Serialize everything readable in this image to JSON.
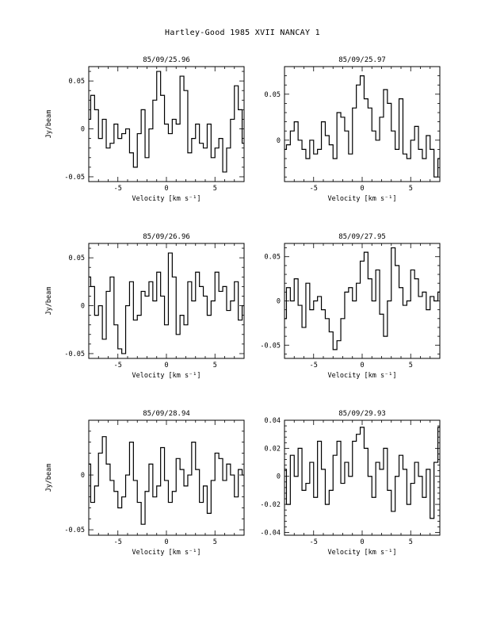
{
  "page": {
    "title": "Hartley-Good 1985 XVII    NANCAY      1"
  },
  "chart_data": [
    {
      "type": "line",
      "title": "85/09/25.96",
      "xlabel": "Velocity [km s⁻¹]",
      "ylabel": "Jy/beam",
      "xlim": [
        -8,
        8
      ],
      "ylim": [
        -0.055,
        0.065
      ],
      "xticks": [
        -5,
        0,
        5
      ],
      "yticks": [
        -0.05,
        0,
        0.05
      ],
      "ytick_labels": [
        "-0.05",
        "0",
        "0.05"
      ],
      "x": [
        -8.0,
        -7.6,
        -7.2,
        -6.8,
        -6.4,
        -6.0,
        -5.6,
        -5.2,
        -4.8,
        -4.4,
        -4.0,
        -3.6,
        -3.2,
        -2.8,
        -2.4,
        -2.0,
        -1.6,
        -1.2,
        -0.8,
        -0.4,
        0.0,
        0.4,
        0.8,
        1.2,
        1.6,
        2.0,
        2.4,
        2.8,
        3.2,
        3.6,
        4.0,
        4.4,
        4.8,
        5.2,
        5.6,
        6.0,
        6.4,
        6.8,
        7.2,
        7.6,
        8.0
      ],
      "values": [
        0.01,
        0.035,
        0.02,
        -0.01,
        0.01,
        -0.02,
        -0.015,
        0.005,
        -0.01,
        -0.005,
        0.0,
        -0.025,
        -0.04,
        -0.005,
        0.02,
        -0.03,
        0.0,
        0.03,
        0.06,
        0.035,
        0.005,
        -0.005,
        0.01,
        0.005,
        0.055,
        0.04,
        -0.025,
        -0.01,
        0.005,
        -0.015,
        -0.02,
        0.005,
        -0.03,
        -0.02,
        -0.01,
        -0.045,
        -0.02,
        0.01,
        0.045,
        0.02,
        -0.015
      ]
    },
    {
      "type": "line",
      "title": "85/09/25.97",
      "xlabel": "Velocity [km s⁻¹]",
      "ylabel": "",
      "xlim": [
        -8,
        8
      ],
      "ylim": [
        -0.045,
        0.08
      ],
      "xticks": [
        -5,
        0,
        5
      ],
      "yticks": [
        0,
        0.05
      ],
      "ytick_labels": [
        "0",
        "0.05"
      ],
      "x": [
        -8.0,
        -7.6,
        -7.2,
        -6.8,
        -6.4,
        -6.0,
        -5.6,
        -5.2,
        -4.8,
        -4.4,
        -4.0,
        -3.6,
        -3.2,
        -2.8,
        -2.4,
        -2.0,
        -1.6,
        -1.2,
        -0.8,
        -0.4,
        0.0,
        0.4,
        0.8,
        1.2,
        1.6,
        2.0,
        2.4,
        2.8,
        3.2,
        3.6,
        4.0,
        4.4,
        4.8,
        5.2,
        5.6,
        6.0,
        6.4,
        6.8,
        7.2,
        7.6,
        8.0
      ],
      "values": [
        -0.01,
        -0.005,
        0.01,
        0.02,
        0.0,
        -0.01,
        -0.02,
        0.0,
        -0.015,
        -0.01,
        0.02,
        0.005,
        -0.005,
        -0.02,
        0.03,
        0.025,
        0.01,
        -0.015,
        0.035,
        0.06,
        0.07,
        0.045,
        0.035,
        0.01,
        0.0,
        0.025,
        0.055,
        0.04,
        0.01,
        -0.01,
        0.045,
        -0.015,
        -0.02,
        0.0,
        0.015,
        -0.01,
        -0.02,
        0.005,
        -0.01,
        -0.04,
        -0.02
      ]
    },
    {
      "type": "line",
      "title": "85/09/26.96",
      "xlabel": "Velocity [km s⁻¹]",
      "ylabel": "Jy/beam",
      "xlim": [
        -8,
        8
      ],
      "ylim": [
        -0.055,
        0.065
      ],
      "xticks": [
        -5,
        0,
        5
      ],
      "yticks": [
        -0.05,
        0,
        0.05
      ],
      "ytick_labels": [
        "-0.05",
        "0",
        "0.05"
      ],
      "x": [
        -8.0,
        -7.6,
        -7.2,
        -6.8,
        -6.4,
        -6.0,
        -5.6,
        -5.2,
        -4.8,
        -4.4,
        -4.0,
        -3.6,
        -3.2,
        -2.8,
        -2.4,
        -2.0,
        -1.6,
        -1.2,
        -0.8,
        -0.4,
        0.0,
        0.4,
        0.8,
        1.2,
        1.6,
        2.0,
        2.4,
        2.8,
        3.2,
        3.6,
        4.0,
        4.4,
        4.8,
        5.2,
        5.6,
        6.0,
        6.4,
        6.8,
        7.2,
        7.6,
        8.0
      ],
      "values": [
        0.03,
        0.02,
        -0.01,
        0.0,
        -0.035,
        0.015,
        0.03,
        -0.02,
        -0.045,
        -0.05,
        0.0,
        0.025,
        -0.015,
        -0.01,
        0.015,
        0.01,
        0.025,
        0.005,
        0.035,
        0.01,
        -0.02,
        0.055,
        0.03,
        -0.03,
        -0.01,
        -0.02,
        0.025,
        0.005,
        0.035,
        0.02,
        0.01,
        -0.01,
        0.005,
        0.035,
        0.015,
        0.02,
        -0.005,
        0.005,
        0.025,
        -0.015,
        0.0
      ]
    },
    {
      "type": "line",
      "title": "85/09/27.95",
      "xlabel": "Velocity [km s⁻¹]",
      "ylabel": "",
      "xlim": [
        -8,
        8
      ],
      "ylim": [
        -0.065,
        0.065
      ],
      "xticks": [
        -5,
        0,
        5
      ],
      "yticks": [
        -0.05,
        0,
        0.05
      ],
      "ytick_labels": [
        "-0.05",
        "0",
        "0.05"
      ],
      "x": [
        -8.0,
        -7.6,
        -7.2,
        -6.8,
        -6.4,
        -6.0,
        -5.6,
        -5.2,
        -4.8,
        -4.4,
        -4.0,
        -3.6,
        -3.2,
        -2.8,
        -2.4,
        -2.0,
        -1.6,
        -1.2,
        -0.8,
        -0.4,
        0.0,
        0.4,
        0.8,
        1.2,
        1.6,
        2.0,
        2.4,
        2.8,
        3.2,
        3.6,
        4.0,
        4.4,
        4.8,
        5.2,
        5.6,
        6.0,
        6.4,
        6.8,
        7.2,
        7.6,
        8.0
      ],
      "values": [
        -0.02,
        0.015,
        0.0,
        0.025,
        -0.005,
        -0.03,
        0.02,
        -0.01,
        0.0,
        0.005,
        -0.01,
        -0.02,
        -0.035,
        -0.055,
        -0.045,
        -0.02,
        0.01,
        0.015,
        0.0,
        0.02,
        0.045,
        0.055,
        0.025,
        0.0,
        0.035,
        -0.015,
        -0.04,
        0.0,
        0.06,
        0.04,
        0.015,
        -0.005,
        0.0,
        0.035,
        0.025,
        0.005,
        0.01,
        -0.01,
        0.005,
        0.0,
        0.01
      ]
    },
    {
      "type": "line",
      "title": "85/09/28.94",
      "xlabel": "Velocity [km s⁻¹]",
      "ylabel": "Jy/beam",
      "xlim": [
        -8,
        8
      ],
      "ylim": [
        -0.055,
        0.05
      ],
      "xticks": [
        -5,
        0,
        5
      ],
      "yticks": [
        -0.05,
        0
      ],
      "ytick_labels": [
        "-0.05",
        "0"
      ],
      "x": [
        -8.0,
        -7.6,
        -7.2,
        -6.8,
        -6.4,
        -6.0,
        -5.6,
        -5.2,
        -4.8,
        -4.4,
        -4.0,
        -3.6,
        -3.2,
        -2.8,
        -2.4,
        -2.0,
        -1.6,
        -1.2,
        -0.8,
        -0.4,
        0.0,
        0.4,
        0.8,
        1.2,
        1.6,
        2.0,
        2.4,
        2.8,
        3.2,
        3.6,
        4.0,
        4.4,
        4.8,
        5.2,
        5.6,
        6.0,
        6.4,
        6.8,
        7.2,
        7.6,
        8.0
      ],
      "values": [
        0.01,
        -0.025,
        -0.01,
        0.02,
        0.035,
        0.01,
        -0.005,
        -0.015,
        -0.03,
        -0.02,
        0.0,
        0.03,
        -0.005,
        -0.025,
        -0.045,
        -0.015,
        0.01,
        -0.02,
        -0.01,
        0.025,
        -0.005,
        -0.025,
        -0.015,
        0.015,
        0.005,
        -0.01,
        0.0,
        0.03,
        0.005,
        -0.025,
        -0.01,
        -0.035,
        -0.005,
        0.02,
        0.015,
        -0.005,
        0.01,
        0.0,
        -0.02,
        0.005,
        0.0
      ]
    },
    {
      "type": "line",
      "title": "85/09/29.93",
      "xlabel": "Velocity [km s⁻¹]",
      "ylabel": "",
      "xlim": [
        -8,
        8
      ],
      "ylim": [
        -0.042,
        0.04
      ],
      "xticks": [
        -5,
        0,
        5
      ],
      "yticks": [
        -0.04,
        -0.02,
        0,
        0.02,
        0.04
      ],
      "ytick_labels": [
        "-0.04",
        "-0.02",
        "0",
        "0.02",
        "0.04"
      ],
      "x": [
        -8.0,
        -7.6,
        -7.2,
        -6.8,
        -6.4,
        -6.0,
        -5.6,
        -5.2,
        -4.8,
        -4.4,
        -4.0,
        -3.6,
        -3.2,
        -2.8,
        -2.4,
        -2.0,
        -1.6,
        -1.2,
        -0.8,
        -0.4,
        0.0,
        0.4,
        0.8,
        1.2,
        1.6,
        2.0,
        2.4,
        2.8,
        3.2,
        3.6,
        4.0,
        4.4,
        4.8,
        5.2,
        5.6,
        6.0,
        6.4,
        6.8,
        7.2,
        7.6,
        8.0
      ],
      "values": [
        0.005,
        -0.02,
        0.015,
        0.0,
        0.02,
        -0.01,
        -0.005,
        0.01,
        -0.015,
        0.025,
        0.005,
        -0.02,
        -0.01,
        0.015,
        0.025,
        -0.005,
        0.01,
        0.0,
        0.025,
        0.03,
        0.035,
        0.02,
        0.0,
        -0.015,
        0.01,
        0.005,
        0.02,
        -0.01,
        -0.025,
        0.0,
        0.015,
        0.005,
        -0.02,
        -0.005,
        0.01,
        0.0,
        -0.015,
        0.005,
        -0.03,
        0.01,
        0.035
      ]
    }
  ]
}
